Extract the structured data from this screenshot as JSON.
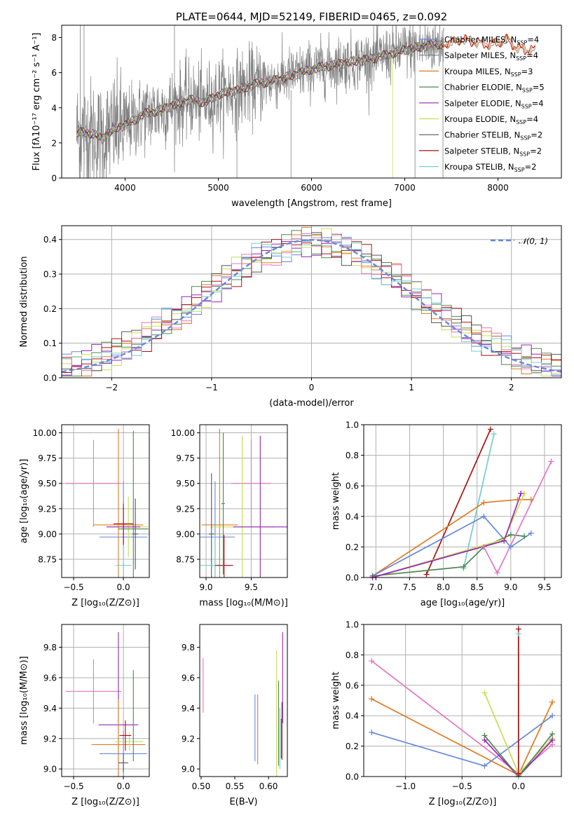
{
  "colors": {
    "Chabrier MILES": "#6688dd",
    "Salpeter MILES": "#6a7a8a",
    "Kroupa MILES": "#e07b20",
    "Chabrier ELODIE": "#4a8a4a",
    "Salpeter ELODIE": "#9922bb",
    "Kroupa ELODIE": "#c8dd55",
    "Chabrier STELIB": "#555555",
    "Salpeter STELIB": "#aa1111",
    "Kroupa STELIB": "#77cccc",
    "data": "#808080",
    "normal": "#6688dd",
    "extra": "#e377c2"
  },
  "chart_data": [
    {
      "panel": "spectrum",
      "type": "line",
      "title": "PLATE=0644, MJD=52149, FIBERID=0465, z=0.092",
      "xlabel": "wavelength [Angstrom, rest frame]",
      "ylabel": "Flux [fλ10⁻¹⁷ erg cm⁻² s⁻¹ A⁻¹]",
      "xlim": [
        3320,
        8680
      ],
      "ylim": [
        0,
        8.7
      ],
      "xticks": [
        4000,
        5000,
        6000,
        7000,
        8000
      ],
      "yticks": [
        0,
        2,
        4,
        6,
        8
      ],
      "grid": false,
      "legend_position": "top-right",
      "legend": [
        {
          "label": "Chabrier MILES, N",
          "sub": "SSP",
          "suffix": "=4",
          "series": "Chabrier MILES"
        },
        {
          "label": "Salpeter MILES, N",
          "sub": "SSP",
          "suffix": "=4",
          "series": "Salpeter MILES"
        },
        {
          "label": "Kroupa MILES, N",
          "sub": "SSP",
          "suffix": "=3",
          "series": "Kroupa MILES"
        },
        {
          "label": "Chabrier ELODIE, N",
          "sub": "SSP",
          "suffix": "=5",
          "series": "Chabrier ELODIE"
        },
        {
          "label": "Salpeter ELODIE, N",
          "sub": "SSP",
          "suffix": "=4",
          "series": "Salpeter ELODIE"
        },
        {
          "label": "Kroupa ELODIE, N",
          "sub": "SSP",
          "suffix": "=4",
          "series": "Kroupa ELODIE"
        },
        {
          "label": "Chabrier STELIB, N",
          "sub": "SSP",
          "suffix": "=2",
          "series": "Chabrier STELIB"
        },
        {
          "label": "Salpeter STELIB, N",
          "sub": "SSP",
          "suffix": "=2",
          "series": "Salpeter STELIB"
        },
        {
          "label": "Kroupa STELIB, N",
          "sub": "SSP",
          "suffix": "=2",
          "series": "Kroupa STELIB"
        }
      ],
      "model_continuum": {
        "x": [
          3500,
          3650,
          3700,
          3750,
          3800,
          3900,
          4000,
          4100,
          4200,
          4300,
          4500,
          4700,
          4862,
          5000,
          5200,
          5400,
          5600,
          5800,
          6000,
          6200,
          6400,
          6600,
          6800,
          7000,
          7200,
          7400
        ],
        "y": [
          2.6,
          2.55,
          2.4,
          2.2,
          2.5,
          2.85,
          3.0,
          3.3,
          3.65,
          3.75,
          4.1,
          4.45,
          4.3,
          4.75,
          5.0,
          5.35,
          5.55,
          5.85,
          6.2,
          6.4,
          6.6,
          6.75,
          7.0,
          7.3,
          7.5,
          7.65
        ]
      },
      "extended_model": {
        "x": [
          7400,
          7500,
          7600,
          7700,
          7800,
          7900,
          8000,
          8100,
          8200,
          8300,
          8400
        ],
        "y": [
          7.65,
          7.7,
          7.9,
          7.8,
          7.7,
          7.6,
          7.7,
          7.9,
          7.4,
          7.3,
          7.3
        ]
      },
      "data_range": [
        3480,
        7420
      ]
    },
    {
      "panel": "residuals",
      "type": "histogram",
      "xlabel": "(data-model)/error",
      "ylabel": "Normed distribution",
      "xlim": [
        -2.5,
        2.5
      ],
      "ylim": [
        0,
        0.44
      ],
      "xticks": [
        -2,
        -1,
        0,
        1,
        2
      ],
      "yticks": [
        0.0,
        0.1,
        0.2,
        0.3,
        0.4
      ],
      "grid": true,
      "legend_position": "top-right",
      "legend_label": "𝒩(0, 1)",
      "bin_width": 0.1,
      "reference_curve": "normal(0,1)"
    },
    {
      "panel": "age-vs-Z",
      "type": "scatter",
      "xlabel": "Z [log₁₀(Z/Z⊙)]",
      "ylabel": "age  [log₁₀(age/yr)]",
      "xlim": [
        -0.62,
        0.26
      ],
      "ylim": [
        8.57,
        10.08
      ],
      "xticks": [
        -0.5,
        0.0
      ],
      "yticks": [
        8.75,
        9.0,
        9.25,
        9.5,
        9.75,
        10.0
      ],
      "grid": true,
      "points": [
        {
          "series": "extra",
          "x": -0.3,
          "y": 9.5,
          "xerr": 0.28,
          "yerr": 0.43
        },
        {
          "series": "Kroupa MILES",
          "x": -0.05,
          "y": 9.09,
          "xerr": 0.25,
          "yerr": 0.95
        },
        {
          "series": "Chabrier MILES",
          "x": 0.0,
          "y": 8.97,
          "xerr": 0.24,
          "yerr": 0.55
        },
        {
          "series": "Kroupa ELODIE",
          "x": 0.05,
          "y": 9.07,
          "xerr": 0.2,
          "yerr": 0.3
        },
        {
          "series": "Chabrier ELODIE",
          "x": 0.1,
          "y": 9.05,
          "xerr": 0.15,
          "yerr": 0.97
        },
        {
          "series": "Salpeter ELODIE",
          "x": 0.0,
          "y": 9.07,
          "xerr": 0.17,
          "yerr": 0.2
        },
        {
          "series": "Kroupa STELIB",
          "x": 0.0,
          "y": 8.69,
          "xerr": 0.08,
          "yerr": 0.2
        },
        {
          "series": "Salpeter STELIB",
          "x": 0.0,
          "y": 9.1,
          "xerr": 0.1,
          "yerr": 0.2
        },
        {
          "series": "Chabrier STELIB",
          "x": 0.12,
          "y": 9.0,
          "xerr": 0.03,
          "yerr": 0.35
        }
      ]
    },
    {
      "panel": "age-vs-mass",
      "type": "scatter",
      "xlabel": "mass [log₁₀(M/M⊙)]",
      "ylabel": "",
      "xlim": [
        8.93,
        9.9
      ],
      "ylim": [
        8.57,
        10.08
      ],
      "xticks": [
        9.0,
        9.5
      ],
      "yticks": [
        8.75,
        9.0,
        9.25,
        9.5,
        9.75,
        10.0
      ],
      "grid": true,
      "points": [
        {
          "series": "extra",
          "x": 9.5,
          "y": 9.5,
          "xerr": 0.22,
          "yerr": 0.43
        },
        {
          "series": "Kroupa MILES",
          "x": 9.15,
          "y": 9.09,
          "xerr": 0.2,
          "yerr": 0.95
        },
        {
          "series": "Chabrier MILES",
          "x": 9.1,
          "y": 8.97,
          "xerr": 0.22,
          "yerr": 0.55
        },
        {
          "series": "Kroupa ELODIE",
          "x": 9.4,
          "y": 9.07,
          "xerr": 0.35,
          "yerr": 0.9
        },
        {
          "series": "Salpeter ELODIE",
          "x": 9.6,
          "y": 9.07,
          "xerr": 0.3,
          "yerr": 0.9
        },
        {
          "series": "Chabrier STELIB",
          "x": 9.06,
          "y": 9.0,
          "xerr": 0.03,
          "yerr": 0.6
        },
        {
          "series": "Kroupa STELIB",
          "x": 9.1,
          "y": 8.69,
          "xerr": 0.18,
          "yerr": 0.3
        },
        {
          "series": "Salpeter STELIB",
          "x": 9.2,
          "y": 8.69,
          "xerr": 0.1,
          "yerr": 0.3
        },
        {
          "series": "Chabrier ELODIE",
          "x": 9.19,
          "y": 9.3,
          "xerr": 0.02,
          "yerr": 0.7
        }
      ]
    },
    {
      "panel": "weight-vs-age",
      "type": "line",
      "xlabel": "age  [log₁₀(age/yr)]",
      "ylabel": "mass weight",
      "xlim": [
        6.82,
        9.75
      ],
      "ylim": [
        0,
        1.0
      ],
      "xticks": [
        7.0,
        7.5,
        8.0,
        8.5,
        9.0,
        9.5
      ],
      "yticks": [
        0.0,
        0.2,
        0.4,
        0.6,
        0.8,
        1.0
      ],
      "grid": true,
      "series": [
        {
          "series": "Salpeter STELIB",
          "x": [
            7.75,
            8.7
          ],
          "y": [
            0.02,
            0.97
          ]
        },
        {
          "series": "Kroupa STELIB",
          "x": [
            8.3,
            8.75
          ],
          "y": [
            0.06,
            0.94
          ]
        },
        {
          "series": "Kroupa MILES",
          "x": [
            6.95,
            8.6,
            9.1,
            9.3
          ],
          "y": [
            0.01,
            0.49,
            0.51,
            0.51
          ]
        },
        {
          "series": "Chabrier MILES",
          "x": [
            6.95,
            8.6,
            9.0,
            9.3
          ],
          "y": [
            0.01,
            0.4,
            0.2,
            0.29
          ]
        },
        {
          "series": "Chabrier ELODIE",
          "x": [
            6.95,
            8.3,
            8.6,
            9.0,
            9.2
          ],
          "y": [
            0.01,
            0.07,
            0.2,
            0.28,
            0.27
          ]
        },
        {
          "series": "Kroupa ELODIE",
          "x": [
            6.95,
            8.9,
            9.2
          ],
          "y": [
            0.0,
            0.25,
            0.55
          ]
        },
        {
          "series": "Salpeter ELODIE",
          "x": [
            6.95,
            8.9,
            9.15
          ],
          "y": [
            0.0,
            0.24,
            0.55
          ]
        },
        {
          "series": "extra",
          "x": [
            8.6,
            8.8,
            9.6
          ],
          "y": [
            0.2,
            0.03,
            0.76
          ]
        }
      ]
    },
    {
      "panel": "mass-vs-Z",
      "type": "scatter",
      "xlabel": "Z [log₁₀(Z/Z⊙)]",
      "ylabel": "mass [log₁₀(M/M⊙)]",
      "xlim": [
        -0.62,
        0.26
      ],
      "ylim": [
        8.95,
        9.95
      ],
      "xticks": [
        -0.5,
        0.0
      ],
      "yticks": [
        9.0,
        9.2,
        9.4,
        9.6,
        9.8
      ],
      "grid": true,
      "points": [
        {
          "series": "extra",
          "x": -0.3,
          "y": 9.51,
          "xerr": 0.28,
          "yerr": 0.21
        },
        {
          "series": "Salpeter ELODIE",
          "x": -0.05,
          "y": 9.29,
          "xerr": 0.2,
          "yerr": 0.61
        },
        {
          "series": "Kroupa MILES",
          "x": -0.05,
          "y": 9.16,
          "xerr": 0.27,
          "yerr": 0.3
        },
        {
          "series": "Chabrier MILES",
          "x": 0.0,
          "y": 9.1,
          "xerr": 0.24,
          "yerr": 0.15
        },
        {
          "series": "Kroupa ELODIE",
          "x": 0.06,
          "y": 9.18,
          "xerr": 0.14,
          "yerr": 0.06
        },
        {
          "series": "Chabrier ELODIE",
          "x": 0.1,
          "y": 9.35,
          "xerr": 0.0,
          "yerr": 0.3
        },
        {
          "series": "Salpeter STELIB",
          "x": 0.02,
          "y": 9.22,
          "xerr": 0.06,
          "yerr": 0.1
        },
        {
          "series": "Chabrier STELIB",
          "x": 0.0,
          "y": 9.04,
          "xerr": 0.05,
          "yerr": 0.06
        }
      ]
    },
    {
      "panel": "mass-vs-EBV",
      "type": "scatter",
      "xlabel": "E(B-V)",
      "ylabel": "",
      "xlim": [
        0.498,
        0.628
      ],
      "ylim": [
        8.95,
        9.95
      ],
      "xticks": [
        0.5,
        0.55,
        0.6
      ],
      "yticks": [
        9.0,
        9.2,
        9.4,
        9.6,
        9.8
      ],
      "grid": false,
      "points": [
        {
          "series": "extra",
          "x": 0.503,
          "y": 9.55,
          "yerr": 0.18
        },
        {
          "series": "Chabrier MILES",
          "x": 0.58,
          "y": 9.27,
          "yerr": 0.22
        },
        {
          "series": "Kroupa MILES",
          "x": 0.584,
          "y": 9.26,
          "yerr": 0.23
        },
        {
          "series": "Kroupa ELODIE",
          "x": 0.612,
          "y": 9.35,
          "yerr": 0.43
        },
        {
          "series": "Chabrier ELODIE",
          "x": 0.615,
          "y": 9.3,
          "yerr": 0.28
        },
        {
          "series": "Kroupa STELIB",
          "x": 0.617,
          "y": 9.2,
          "yerr": 0.2
        },
        {
          "series": "Salpeter STELIB",
          "x": 0.62,
          "y": 9.25,
          "yerr": 0.19
        },
        {
          "series": "Salpeter ELODIE",
          "x": 0.621,
          "y": 9.6,
          "yerr": 0.3
        },
        {
          "series": "Chabrier STELIB",
          "x": 0.619,
          "y": 9.2,
          "yerr": 0.13
        }
      ]
    },
    {
      "panel": "weight-vs-Z",
      "type": "line",
      "xlabel": "Z [log₁₀(Z/Z⊙)]",
      "ylabel": "mass weight",
      "xlim": [
        -1.37,
        0.38
      ],
      "ylim": [
        0,
        1.0
      ],
      "xticks": [
        -1.0,
        -0.5,
        0.0
      ],
      "yticks": [
        0.0,
        0.2,
        0.4,
        0.6,
        0.8,
        1.0
      ],
      "grid": true,
      "series": [
        {
          "series": "extra",
          "x": [
            -1.3,
            0.0,
            0.3
          ],
          "y": [
            0.76,
            0.02,
            0.21
          ]
        },
        {
          "series": "Kroupa MILES",
          "x": [
            -1.3,
            0.0,
            0.3
          ],
          "y": [
            0.51,
            0.01,
            0.49
          ]
        },
        {
          "series": "Chabrier MILES",
          "x": [
            -1.3,
            -0.3,
            0.3
          ],
          "y": [
            0.29,
            0.07,
            0.4
          ]
        },
        {
          "series": "Kroupa ELODIE",
          "x": [
            -0.3,
            0.0,
            0.3
          ],
          "y": [
            0.55,
            0.02,
            0.25
          ]
        },
        {
          "series": "Salpeter ELODIE",
          "x": [
            -0.3,
            0.0,
            0.3
          ],
          "y": [
            0.24,
            0.0,
            0.24
          ]
        },
        {
          "series": "Chabrier ELODIE",
          "x": [
            -0.3,
            0.0,
            0.3
          ],
          "y": [
            0.27,
            0.0,
            0.28
          ]
        },
        {
          "series": "Kroupa STELIB",
          "x": [
            0.0,
            0.0
          ],
          "y": [
            0.0,
            0.94
          ]
        },
        {
          "series": "Salpeter STELIB",
          "x": [
            0.0,
            0.0
          ],
          "y": [
            0.02,
            0.97
          ]
        }
      ]
    }
  ]
}
